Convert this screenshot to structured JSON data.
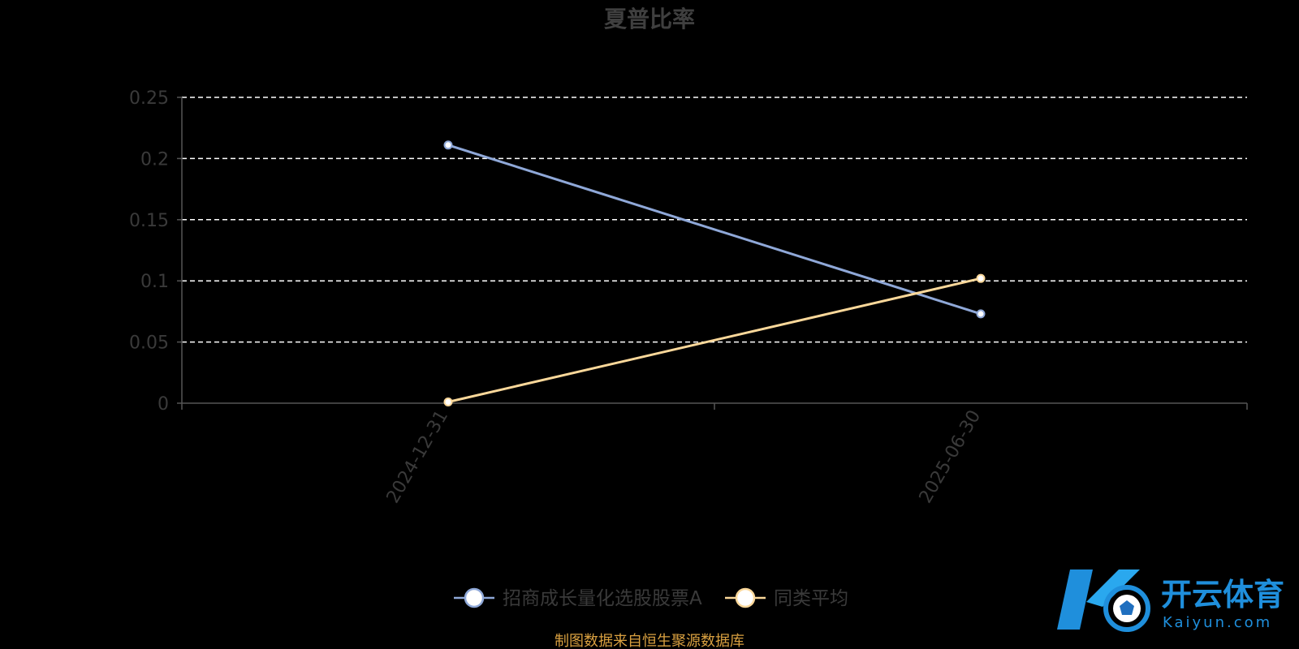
{
  "chart_data": {
    "type": "line",
    "title": "夏普比率",
    "categories": [
      "2024-12-31",
      "2025-06-30"
    ],
    "series": [
      {
        "name": "招商成长量化选股股票A",
        "values": [
          0.211,
          0.073
        ],
        "color": "#8fa8d8"
      },
      {
        "name": "同类平均",
        "values": [
          0.001,
          0.102
        ],
        "color": "#fbd89a"
      }
    ],
    "ylim": [
      0,
      0.25
    ],
    "yticks": [
      "0",
      "0.05",
      "0.1",
      "0.15",
      "0.2",
      "0.25"
    ],
    "grid": true,
    "legend_position": "bottom-center",
    "gridline_color": "#ffffff",
    "axis_color": "#555555"
  },
  "source_note": "制图数据来自恒生聚源数据库",
  "watermark": {
    "brand_cn": "开云体育",
    "brand_en": "Kaiyun.com"
  }
}
